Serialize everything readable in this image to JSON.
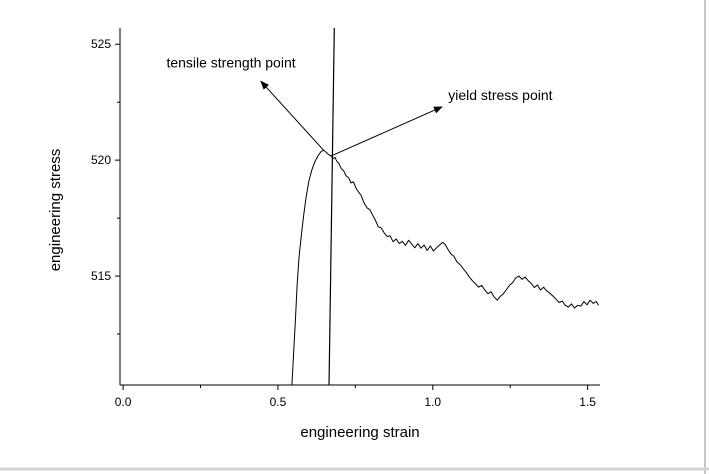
{
  "chart_data": {
    "type": "line",
    "title": "",
    "xlabel": "engineering strain",
    "ylabel": "engineering stress",
    "xlim": [
      -0.01,
      1.54
    ],
    "ylim": [
      510.3,
      525.7
    ],
    "x_ticks": [
      {
        "value": 0.0,
        "label": "0.0"
      },
      {
        "value": 0.5,
        "label": "0.5"
      },
      {
        "value": 1.0,
        "label": "1.0"
      },
      {
        "value": 1.5,
        "label": "1.5"
      }
    ],
    "x_minor_ticks": [
      0.25,
      0.75,
      1.25
    ],
    "y_ticks": [
      {
        "value": 515,
        "label": "515"
      },
      {
        "value": 520,
        "label": "520"
      },
      {
        "value": 525,
        "label": "525"
      }
    ],
    "y_minor_ticks": [
      512.5,
      517.5,
      522.5
    ],
    "grid": false,
    "series": [
      {
        "points": [
          [
            0.545,
            510.3
          ],
          [
            0.55,
            511.5
          ],
          [
            0.556,
            513.0
          ],
          [
            0.562,
            514.6
          ],
          [
            0.568,
            515.8
          ],
          [
            0.575,
            516.7
          ],
          [
            0.583,
            517.6
          ],
          [
            0.591,
            518.4
          ],
          [
            0.6,
            519.1
          ],
          [
            0.61,
            519.6
          ],
          [
            0.62,
            519.95
          ],
          [
            0.63,
            520.2
          ],
          [
            0.64,
            520.38
          ],
          [
            0.648,
            520.42
          ],
          [
            0.655,
            520.35
          ],
          [
            0.66,
            520.28
          ],
          [
            0.666,
            520.22
          ],
          [
            0.672,
            520.18
          ],
          [
            0.678,
            520.06
          ],
          [
            0.684,
            520.12
          ],
          [
            0.69,
            519.95
          ],
          [
            0.697,
            519.86
          ],
          [
            0.705,
            519.62
          ],
          [
            0.712,
            519.55
          ],
          [
            0.72,
            519.32
          ],
          [
            0.728,
            519.25
          ],
          [
            0.736,
            519.02
          ],
          [
            0.744,
            519.06
          ],
          [
            0.752,
            518.8
          ],
          [
            0.76,
            518.62
          ],
          [
            0.768,
            518.5
          ],
          [
            0.778,
            518.16
          ],
          [
            0.788,
            517.94
          ],
          [
            0.797,
            517.86
          ],
          [
            0.806,
            517.62
          ],
          [
            0.815,
            517.4
          ],
          [
            0.824,
            517.12
          ],
          [
            0.833,
            517.08
          ],
          [
            0.843,
            516.86
          ],
          [
            0.853,
            516.7
          ],
          [
            0.862,
            516.74
          ],
          [
            0.872,
            516.48
          ],
          [
            0.882,
            516.6
          ],
          [
            0.892,
            516.4
          ],
          [
            0.902,
            516.5
          ],
          [
            0.912,
            516.32
          ],
          [
            0.922,
            516.54
          ],
          [
            0.932,
            516.38
          ],
          [
            0.942,
            516.22
          ],
          [
            0.952,
            516.4
          ],
          [
            0.962,
            516.2
          ],
          [
            0.972,
            516.34
          ],
          [
            0.982,
            516.1
          ],
          [
            0.992,
            516.3
          ],
          [
            1.002,
            516.08
          ],
          [
            1.012,
            516.22
          ],
          [
            1.022,
            516.34
          ],
          [
            1.032,
            516.45
          ],
          [
            1.04,
            516.36
          ],
          [
            1.048,
            516.18
          ],
          [
            1.058,
            515.96
          ],
          [
            1.068,
            515.86
          ],
          [
            1.078,
            515.62
          ],
          [
            1.088,
            515.5
          ],
          [
            1.098,
            515.32
          ],
          [
            1.108,
            515.16
          ],
          [
            1.118,
            514.96
          ],
          [
            1.128,
            514.8
          ],
          [
            1.138,
            514.66
          ],
          [
            1.148,
            514.52
          ],
          [
            1.158,
            514.6
          ],
          [
            1.168,
            514.4
          ],
          [
            1.178,
            514.24
          ],
          [
            1.188,
            514.32
          ],
          [
            1.198,
            514.1
          ],
          [
            1.208,
            513.96
          ],
          [
            1.218,
            514.12
          ],
          [
            1.228,
            514.24
          ],
          [
            1.238,
            514.42
          ],
          [
            1.248,
            514.6
          ],
          [
            1.258,
            514.72
          ],
          [
            1.268,
            514.92
          ],
          [
            1.278,
            515.0
          ],
          [
            1.288,
            514.86
          ],
          [
            1.298,
            514.96
          ],
          [
            1.308,
            514.8
          ],
          [
            1.318,
            514.68
          ],
          [
            1.328,
            514.5
          ],
          [
            1.338,
            514.62
          ],
          [
            1.348,
            514.4
          ],
          [
            1.358,
            514.52
          ],
          [
            1.368,
            514.36
          ],
          [
            1.378,
            514.26
          ],
          [
            1.388,
            514.14
          ],
          [
            1.398,
            514.0
          ],
          [
            1.408,
            513.86
          ],
          [
            1.418,
            513.92
          ],
          [
            1.428,
            513.74
          ],
          [
            1.438,
            513.66
          ],
          [
            1.448,
            513.8
          ],
          [
            1.458,
            513.62
          ],
          [
            1.468,
            513.74
          ],
          [
            1.478,
            513.7
          ],
          [
            1.488,
            513.9
          ],
          [
            1.498,
            513.76
          ],
          [
            1.508,
            513.96
          ],
          [
            1.518,
            513.82
          ],
          [
            1.528,
            513.9
          ],
          [
            1.535,
            513.74
          ]
        ]
      }
    ],
    "reference_lines": [
      {
        "name": "vertical-line",
        "x_bottom": 0.665,
        "x_top": 0.682
      }
    ],
    "annotations": [
      {
        "text": "tensile strength point",
        "at": [
          0.648,
          520.42
        ],
        "arrow_tip": [
          0.445,
          523.4
        ],
        "text_at": [
          0.14,
          524.0
        ]
      },
      {
        "text": "yield stress point",
        "at": [
          0.672,
          520.18
        ],
        "arrow_tip": [
          1.03,
          522.3
        ],
        "text_at": [
          1.05,
          522.6
        ]
      }
    ]
  }
}
